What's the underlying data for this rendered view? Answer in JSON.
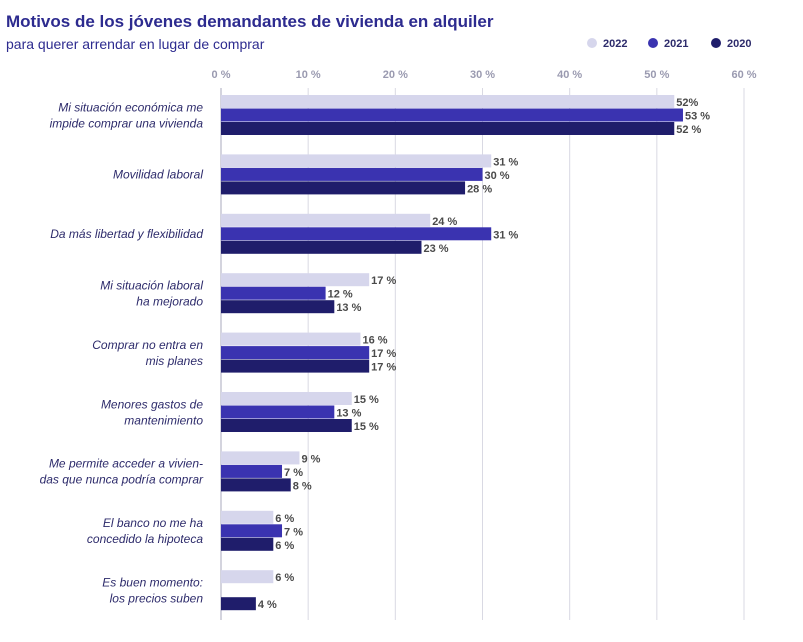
{
  "colors": {
    "title": "#2d2b8f",
    "text": "#2d2b6b",
    "tick": "#9a9ab0",
    "grid": "#d9d9e3",
    "value": "#4a4a4a",
    "s2022": "#d6d6ec",
    "s2021": "#3a33b0",
    "s2020": "#1f1d6b"
  },
  "chart_data": {
    "type": "bar",
    "orientation": "horizontal",
    "title": "Motivos de los jóvenes demandantes de vivienda en alquiler",
    "subtitle": "para querer arrendar en lugar de comprar",
    "xlim": [
      0,
      60
    ],
    "ticks": [
      0,
      10,
      20,
      30,
      40,
      50,
      60
    ],
    "tick_labels": [
      "0 %",
      "10 %",
      "20 %",
      "30 %",
      "40 %",
      "50 %",
      "60 %"
    ],
    "grid": true,
    "legend_position": "top-right",
    "categories": [
      [
        "Mi situación económica me",
        "impide comprar una vivienda"
      ],
      [
        "Movilidad laboral"
      ],
      [
        "Da más libertad y flexibilidad"
      ],
      [
        "Mi situación laboral",
        "ha mejorado"
      ],
      [
        "Comprar no entra en",
        "mis planes"
      ],
      [
        "Menores gastos de",
        "mantenimiento"
      ],
      [
        "Me permite acceder a vivien-",
        "das que nunca podría comprar"
      ],
      [
        "El banco no me ha",
        "concedido la hipoteca"
      ],
      [
        "Es buen momento:",
        "los precios suben"
      ]
    ],
    "series": [
      {
        "name": "2022",
        "values": [
          52,
          31,
          24,
          17,
          16,
          15,
          9,
          6,
          6
        ],
        "labels": [
          "52%",
          "31 %",
          "24 %",
          "17 %",
          "16 %",
          "15 %",
          "9 %",
          "6 %",
          "6 %"
        ]
      },
      {
        "name": "2021",
        "values": [
          53,
          30,
          31,
          12,
          17,
          13,
          7,
          7,
          null
        ],
        "labels": [
          "53 %",
          "30 %",
          "31 %",
          "12 %",
          "17 %",
          "13 %",
          "7 %",
          "7 %",
          null
        ]
      },
      {
        "name": "2020",
        "values": [
          52,
          28,
          23,
          13,
          17,
          15,
          8,
          6,
          4
        ],
        "labels": [
          "52 %",
          "28 %",
          "23 %",
          "13 %",
          "17 %",
          "15 %",
          "8 %",
          "6 %",
          "4 %"
        ]
      }
    ]
  }
}
